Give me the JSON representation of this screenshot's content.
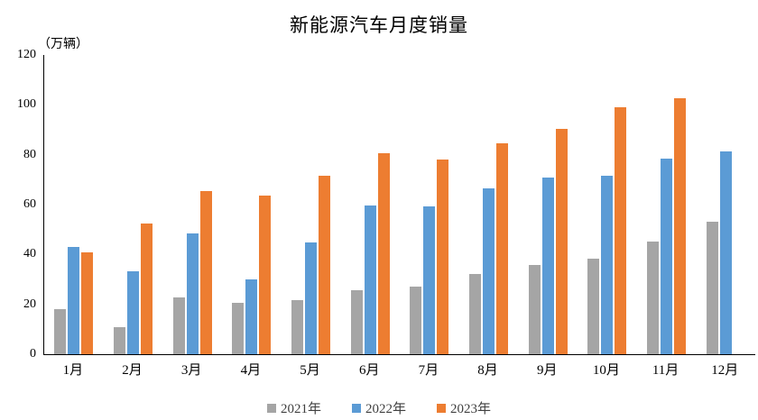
{
  "title": "新能源汽车月度销量",
  "axis_unit_label": "（万辆）",
  "chart_data": {
    "type": "bar",
    "title": "新能源汽车月度销量",
    "unit_label": "（万辆）",
    "xlabel": "",
    "ylabel": "万辆",
    "categories": [
      "1月",
      "2月",
      "3月",
      "4月",
      "5月",
      "6月",
      "7月",
      "8月",
      "9月",
      "10月",
      "11月",
      "12月"
    ],
    "series": [
      {
        "name": "2021年",
        "color": "#A5A5A5",
        "values": [
          17.9,
          11.0,
          22.6,
          20.6,
          21.7,
          25.6,
          27.1,
          32.1,
          35.7,
          38.3,
          45.0,
          53.1
        ]
      },
      {
        "name": "2022年",
        "color": "#5B9BD5",
        "values": [
          43.1,
          33.4,
          48.4,
          29.9,
          44.7,
          59.6,
          59.3,
          66.6,
          70.8,
          71.4,
          78.6,
          81.4
        ]
      },
      {
        "name": "2023年",
        "color": "#ED7D31",
        "values": [
          40.8,
          52.5,
          65.3,
          63.6,
          71.7,
          80.6,
          78.0,
          84.6,
          90.4,
          99.0,
          102.6,
          null
        ]
      }
    ],
    "ylim": [
      0,
      120
    ],
    "yticks": [
      0,
      20,
      40,
      60,
      80,
      100,
      120
    ],
    "grid": false,
    "legend_position": "bottom",
    "axis_color": "#000000",
    "legend_text_color": "#404040"
  }
}
